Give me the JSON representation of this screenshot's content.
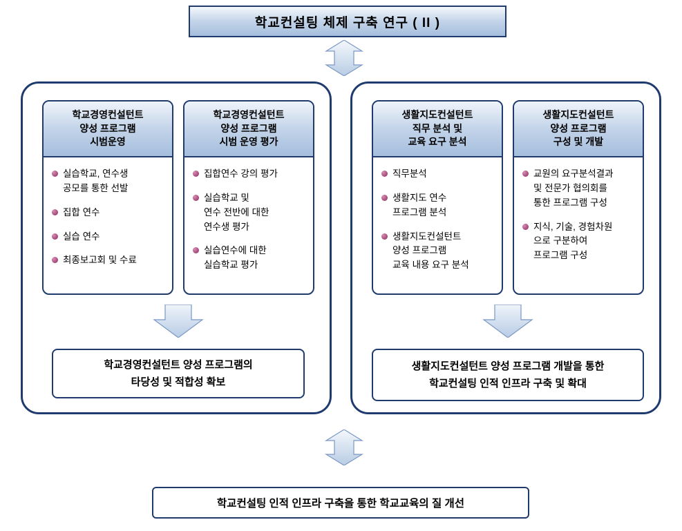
{
  "title": "학교컨설팅 체제 구축 연구 ( II )",
  "colors": {
    "border": "#1f3b6e",
    "grad_top": "#f4f8fc",
    "grad_mid": "#c3d4e9",
    "grad_bot": "#a5bedd",
    "bullet_light": "#d98bb5",
    "bullet_dark": "#8a2b5c",
    "arrow_fill": "#dbe7f4",
    "arrow_stroke": "#7a97c4"
  },
  "left_panel": {
    "card1": {
      "header": "학교경영컨설턴트\n양성 프로그램\n시범운영",
      "bullets": [
        "실습학교, 연수생\n공모를 통한 선발",
        "집합 연수",
        "실습 연수",
        "최종보고회 및 수료"
      ]
    },
    "card2": {
      "header": "학교경영컨설턴트\n양성 프로그램\n시범 운영 평가",
      "bullets": [
        "집합연수 강의 평가",
        "실습학교 및\n연수 전반에 대한\n연수생 평가",
        "실습연수에 대한\n실습학교 평가"
      ]
    },
    "result": "학교경영컨설턴트 양성 프로그램의\n타당성 및 적합성 확보"
  },
  "right_panel": {
    "card1": {
      "header": "생활지도컨설턴트\n직무 분석 및\n교육 요구 분석",
      "bullets": [
        "직무분석",
        "생활지도 연수\n프로그램 분석",
        "생활지도컨설턴트\n양성 프로그램\n교육 내용 요구 분석"
      ]
    },
    "card2": {
      "header": "생활지도컨설턴트\n양성 프로그램\n구성 및 개발",
      "bullets": [
        "교원의 요구분석결과\n및 전문가 협의회를\n통한 프로그램 구성",
        "지식, 기술, 경험차원\n으로 구분하여\n프로그램 구성"
      ]
    },
    "result": "생활지도컨설턴트 양성 프로그램 개발을 통한\n학교컨설팅 인적 인프라 구축 및 확대"
  },
  "bottom": "학교컨설팅 인적 인프라 구축을 통한 학교교육의 질 개선"
}
